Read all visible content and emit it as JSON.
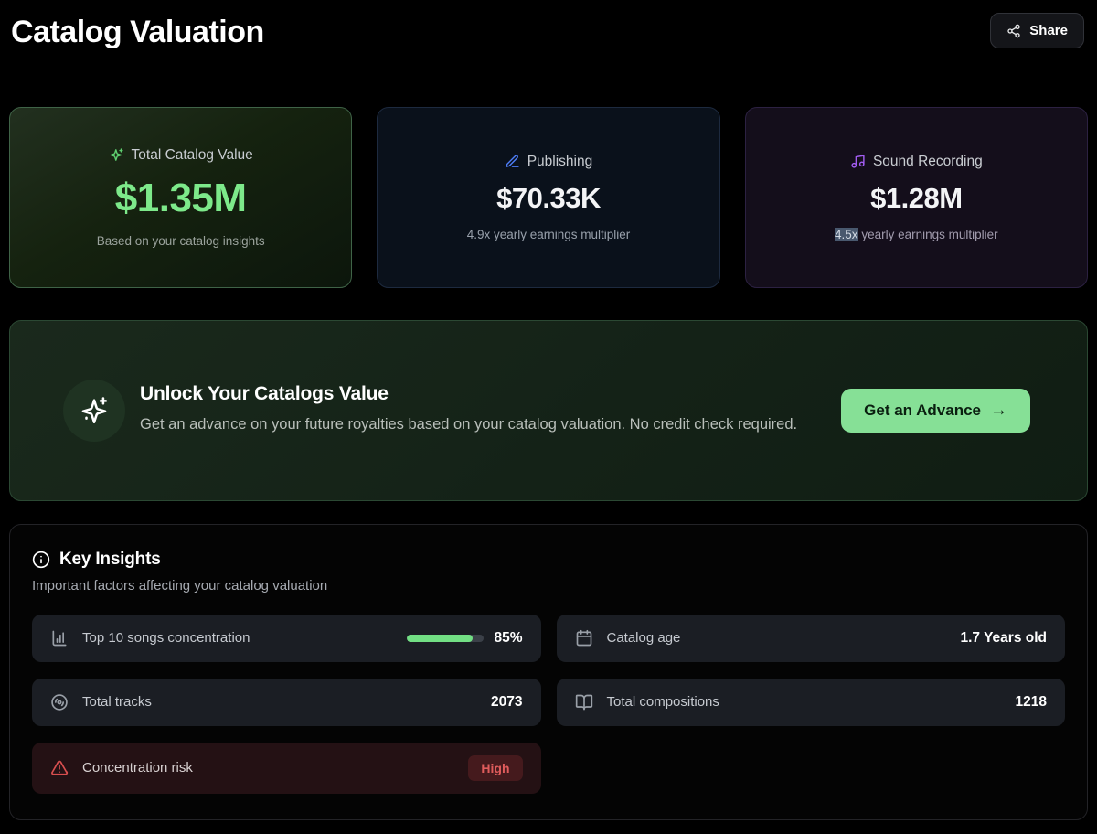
{
  "page": {
    "title": "Catalog Valuation"
  },
  "header": {
    "share_button": "Share"
  },
  "cards": [
    {
      "label": "Total Catalog Value",
      "value": "$1.35M",
      "subtext": "Based on your catalog insights"
    },
    {
      "label": "Publishing",
      "value": "$70.33K",
      "subtext": "4.9x yearly earnings multiplier"
    },
    {
      "label": "Sound Recording",
      "value": "$1.28M",
      "subtext_selected": "4.5x",
      "subtext_rest": " yearly earnings multiplier"
    }
  ],
  "banner": {
    "title": "Unlock Your Catalogs Value",
    "description": "Get an advance on your future royalties based on your catalog valuation. No credit check required.",
    "cta_label": "Get an Advance",
    "cta_arrow": "→"
  },
  "insights": {
    "title": "Key Insights",
    "subtitle": "Important factors affecting your catalog valuation",
    "items": [
      {
        "label": "Top 10 songs concentration",
        "value": "85%",
        "progress_percent": 85
      },
      {
        "label": "Catalog age",
        "value": "1.7 Years old"
      },
      {
        "label": "Total tracks",
        "value": "2073"
      },
      {
        "label": "Total compositions",
        "value": "1218"
      },
      {
        "label": "Concentration risk",
        "badge": "High"
      }
    ]
  },
  "colors": {
    "accent_green": "#7de98a",
    "accent_blue": "#4d7cf6",
    "accent_purple": "#a35df2",
    "risk_red": "#e05c5c",
    "progress_fill": "#72df84",
    "cta_background": "#86e096",
    "selection_highlight": "#49586e"
  }
}
